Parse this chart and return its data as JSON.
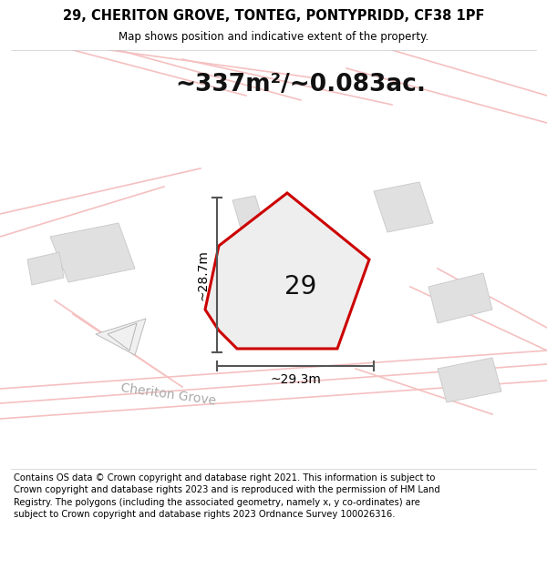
{
  "title_line1": "29, CHERITON GROVE, TONTEG, PONTYPRIDD, CF38 1PF",
  "title_line2": "Map shows position and indicative extent of the property.",
  "area_label": "~337m²/~0.083ac.",
  "plot_number": "29",
  "dim_vertical": "~28.7m",
  "dim_horizontal": "~29.3m",
  "street_label": "Cheriton Grove",
  "footer_text": "Contains OS data © Crown copyright and database right 2021. This information is subject to Crown copyright and database rights 2023 and is reproduced with the permission of HM Land Registry. The polygons (including the associated geometry, namely x, y co-ordinates) are subject to Crown copyright and database rights 2023 Ordnance Survey 100026316.",
  "map_bg": "#ffffff",
  "plot_fill": "#f0f0f0",
  "plot_edge": "#cc0000",
  "dim_line_color": "#555555",
  "building_color": "#e0e0e0",
  "building_edge": "#cccccc",
  "faint_line_color": "#f5c0c0",
  "title_fontsize": 10.5,
  "area_fontsize": 19,
  "plot_num_fontsize": 20,
  "dim_fontsize": 10,
  "street_fontsize": 10,
  "footer_fontsize": 7.2
}
